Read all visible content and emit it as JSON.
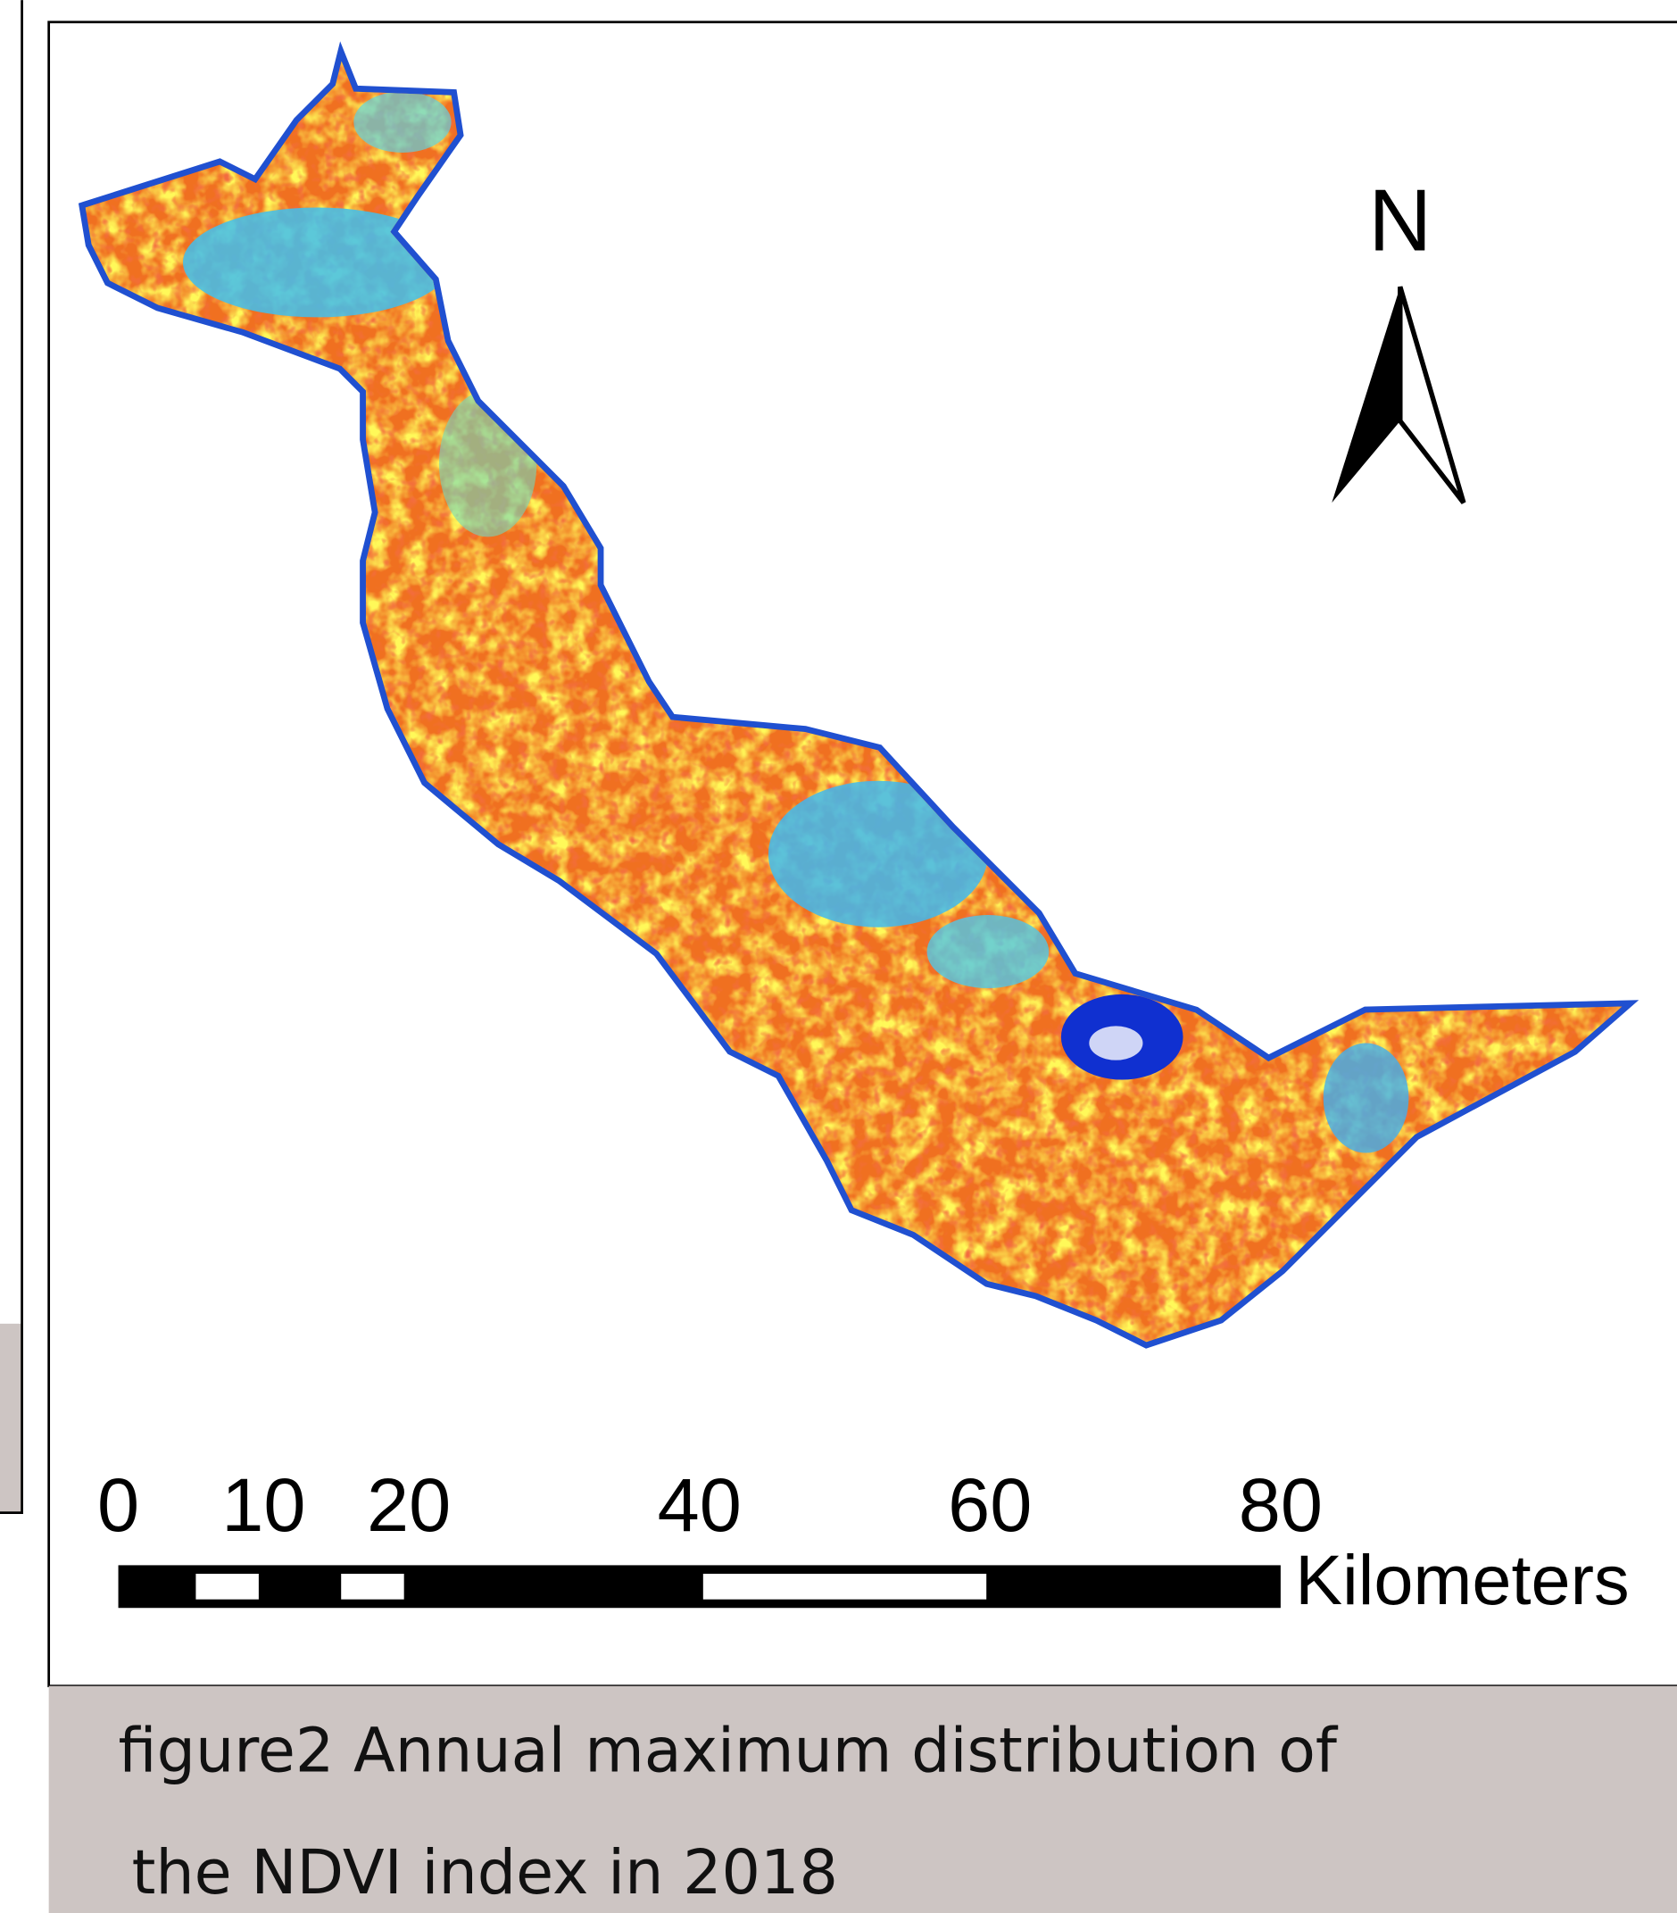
{
  "north_arrow": {
    "label": "N"
  },
  "scale_bar": {
    "ticks": [
      0,
      10,
      20,
      40,
      60,
      80
    ],
    "unit": "Kilometers"
  },
  "caption": {
    "lines": [
      "figure2  Annual maximum distribution of",
      "the NDVI index in 2018"
    ]
  }
}
